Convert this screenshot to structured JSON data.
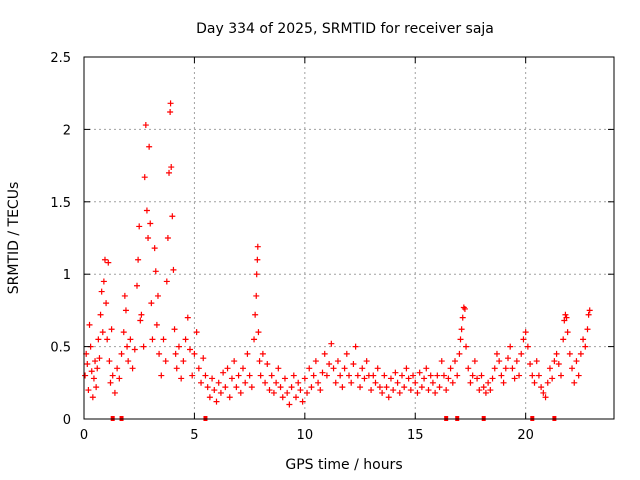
{
  "chart_data": {
    "type": "scatter",
    "title": "Day 334 of 2025, SRMTID for receiver saja",
    "xlabel": "GPS time / hours",
    "ylabel": "SRMTID / TECUs",
    "xlim": [
      0,
      24
    ],
    "ylim": [
      0,
      2.5
    ],
    "x_ticks": [
      0,
      5,
      10,
      15,
      20
    ],
    "x_tick_labels": [
      "0",
      "5",
      "10",
      "15",
      "20"
    ],
    "y_ticks": [
      0,
      0.5,
      1,
      1.5,
      2,
      2.5
    ],
    "y_tick_labels": [
      "0",
      "0.5",
      "1",
      "1.5",
      "2",
      "2.5"
    ],
    "grid": true,
    "marker": "+",
    "series": [
      {
        "name": "SRMTID",
        "color": "#ff0000",
        "points": [
          [
            0.05,
            0.3
          ],
          [
            0.1,
            0.45
          ],
          [
            0.15,
            0.38
          ],
          [
            0.2,
            0.2
          ],
          [
            0.25,
            0.65
          ],
          [
            0.3,
            0.5
          ],
          [
            0.35,
            0.33
          ],
          [
            0.4,
            0.15
          ],
          [
            0.45,
            0.28
          ],
          [
            0.5,
            0.4
          ],
          [
            0.55,
            0.22
          ],
          [
            0.6,
            0.35
          ],
          [
            0.65,
            0.55
          ],
          [
            0.7,
            0.42
          ],
          [
            0.75,
            0.72
          ],
          [
            0.8,
            0.88
          ],
          [
            0.85,
            0.6
          ],
          [
            0.9,
            0.95
          ],
          [
            0.95,
            1.1
          ],
          [
            1.0,
            0.8
          ],
          [
            1.05,
            0.55
          ],
          [
            1.1,
            1.08
          ],
          [
            1.15,
            0.4
          ],
          [
            1.2,
            0.25
          ],
          [
            1.25,
            0.62
          ],
          [
            1.3,
            0.3
          ],
          [
            1.4,
            0.18
          ],
          [
            1.5,
            0.35
          ],
          [
            1.6,
            0.28
          ],
          [
            1.7,
            0.45
          ],
          [
            1.8,
            0.6
          ],
          [
            1.85,
            0.85
          ],
          [
            1.9,
            0.75
          ],
          [
            1.95,
            0.5
          ],
          [
            2.0,
            0.4
          ],
          [
            2.1,
            0.55
          ],
          [
            2.2,
            0.35
          ],
          [
            2.3,
            0.48
          ],
          [
            2.4,
            0.92
          ],
          [
            2.45,
            1.1
          ],
          [
            2.5,
            1.33
          ],
          [
            2.55,
            0.68
          ],
          [
            2.6,
            0.72
          ],
          [
            2.7,
            0.5
          ],
          [
            2.75,
            1.67
          ],
          [
            2.8,
            2.03
          ],
          [
            2.85,
            1.44
          ],
          [
            2.9,
            1.25
          ],
          [
            2.95,
            1.88
          ],
          [
            3.0,
            1.35
          ],
          [
            3.05,
            0.8
          ],
          [
            3.1,
            0.55
          ],
          [
            3.2,
            1.18
          ],
          [
            3.25,
            1.02
          ],
          [
            3.3,
            0.65
          ],
          [
            3.35,
            0.85
          ],
          [
            3.4,
            0.45
          ],
          [
            3.5,
            0.3
          ],
          [
            3.6,
            0.55
          ],
          [
            3.7,
            0.4
          ],
          [
            3.75,
            0.95
          ],
          [
            3.8,
            1.25
          ],
          [
            3.85,
            1.7
          ],
          [
            3.9,
            2.12
          ],
          [
            3.92,
            2.18
          ],
          [
            3.95,
            1.74
          ],
          [
            4.0,
            1.4
          ],
          [
            4.05,
            1.03
          ],
          [
            4.1,
            0.62
          ],
          [
            4.15,
            0.45
          ],
          [
            4.2,
            0.35
          ],
          [
            4.3,
            0.5
          ],
          [
            4.4,
            0.28
          ],
          [
            4.5,
            0.4
          ],
          [
            4.6,
            0.55
          ],
          [
            4.7,
            0.7
          ],
          [
            4.8,
            0.48
          ],
          [
            4.9,
            0.3
          ],
          [
            5.0,
            0.45
          ],
          [
            5.1,
            0.6
          ],
          [
            5.2,
            0.35
          ],
          [
            5.3,
            0.25
          ],
          [
            5.4,
            0.42
          ],
          [
            5.5,
            0.3
          ],
          [
            5.6,
            0.22
          ],
          [
            5.7,
            0.15
          ],
          [
            5.8,
            0.28
          ],
          [
            5.9,
            0.2
          ],
          [
            6.0,
            0.12
          ],
          [
            6.1,
            0.25
          ],
          [
            6.2,
            0.18
          ],
          [
            6.3,
            0.32
          ],
          [
            6.4,
            0.22
          ],
          [
            6.5,
            0.35
          ],
          [
            6.6,
            0.15
          ],
          [
            6.7,
            0.28
          ],
          [
            6.8,
            0.4
          ],
          [
            6.9,
            0.22
          ],
          [
            7.0,
            0.3
          ],
          [
            7.1,
            0.18
          ],
          [
            7.2,
            0.35
          ],
          [
            7.3,
            0.25
          ],
          [
            7.4,
            0.45
          ],
          [
            7.5,
            0.3
          ],
          [
            7.6,
            0.22
          ],
          [
            7.7,
            0.55
          ],
          [
            7.75,
            0.72
          ],
          [
            7.8,
            0.85
          ],
          [
            7.82,
            1.0
          ],
          [
            7.85,
            1.1
          ],
          [
            7.87,
            1.19
          ],
          [
            7.9,
            0.6
          ],
          [
            7.95,
            0.4
          ],
          [
            8.0,
            0.3
          ],
          [
            8.1,
            0.45
          ],
          [
            8.2,
            0.25
          ],
          [
            8.3,
            0.38
          ],
          [
            8.4,
            0.2
          ],
          [
            8.5,
            0.3
          ],
          [
            8.6,
            0.18
          ],
          [
            8.7,
            0.25
          ],
          [
            8.8,
            0.35
          ],
          [
            8.9,
            0.22
          ],
          [
            9.0,
            0.15
          ],
          [
            9.1,
            0.28
          ],
          [
            9.2,
            0.18
          ],
          [
            9.3,
            0.1
          ],
          [
            9.4,
            0.22
          ],
          [
            9.5,
            0.3
          ],
          [
            9.6,
            0.15
          ],
          [
            9.7,
            0.25
          ],
          [
            9.8,
            0.2
          ],
          [
            9.9,
            0.12
          ],
          [
            10.0,
            0.28
          ],
          [
            10.1,
            0.18
          ],
          [
            10.2,
            0.35
          ],
          [
            10.3,
            0.22
          ],
          [
            10.4,
            0.3
          ],
          [
            10.5,
            0.4
          ],
          [
            10.6,
            0.25
          ],
          [
            10.7,
            0.2
          ],
          [
            10.8,
            0.32
          ],
          [
            10.9,
            0.45
          ],
          [
            11.0,
            0.3
          ],
          [
            11.1,
            0.38
          ],
          [
            11.2,
            0.52
          ],
          [
            11.3,
            0.35
          ],
          [
            11.4,
            0.25
          ],
          [
            11.5,
            0.4
          ],
          [
            11.6,
            0.3
          ],
          [
            11.7,
            0.22
          ],
          [
            11.8,
            0.35
          ],
          [
            11.9,
            0.45
          ],
          [
            12.0,
            0.3
          ],
          [
            12.1,
            0.25
          ],
          [
            12.2,
            0.38
          ],
          [
            12.3,
            0.5
          ],
          [
            12.4,
            0.3
          ],
          [
            12.5,
            0.22
          ],
          [
            12.6,
            0.35
          ],
          [
            12.7,
            0.28
          ],
          [
            12.8,
            0.4
          ],
          [
            12.9,
            0.3
          ],
          [
            13.0,
            0.2
          ],
          [
            13.1,
            0.3
          ],
          [
            13.2,
            0.25
          ],
          [
            13.3,
            0.35
          ],
          [
            13.4,
            0.22
          ],
          [
            13.5,
            0.18
          ],
          [
            13.6,
            0.3
          ],
          [
            13.7,
            0.22
          ],
          [
            13.8,
            0.15
          ],
          [
            13.9,
            0.28
          ],
          [
            14.0,
            0.2
          ],
          [
            14.1,
            0.32
          ],
          [
            14.2,
            0.25
          ],
          [
            14.3,
            0.18
          ],
          [
            14.4,
            0.3
          ],
          [
            14.5,
            0.22
          ],
          [
            14.6,
            0.35
          ],
          [
            14.7,
            0.28
          ],
          [
            14.8,
            0.2
          ],
          [
            14.9,
            0.3
          ],
          [
            15.0,
            0.25
          ],
          [
            15.1,
            0.18
          ],
          [
            15.2,
            0.32
          ],
          [
            15.3,
            0.22
          ],
          [
            15.4,
            0.28
          ],
          [
            15.5,
            0.35
          ],
          [
            15.6,
            0.2
          ],
          [
            15.7,
            0.3
          ],
          [
            15.8,
            0.25
          ],
          [
            15.9,
            0.18
          ],
          [
            16.0,
            0.3
          ],
          [
            16.1,
            0.22
          ],
          [
            16.2,
            0.4
          ],
          [
            16.3,
            0.3
          ],
          [
            16.4,
            0.2
          ],
          [
            16.5,
            0.28
          ],
          [
            16.6,
            0.35
          ],
          [
            16.7,
            0.25
          ],
          [
            16.8,
            0.4
          ],
          [
            16.9,
            0.3
          ],
          [
            17.0,
            0.45
          ],
          [
            17.05,
            0.55
          ],
          [
            17.1,
            0.62
          ],
          [
            17.15,
            0.7
          ],
          [
            17.2,
            0.77
          ],
          [
            17.25,
            0.76
          ],
          [
            17.3,
            0.5
          ],
          [
            17.4,
            0.35
          ],
          [
            17.5,
            0.25
          ],
          [
            17.6,
            0.3
          ],
          [
            17.7,
            0.4
          ],
          [
            17.8,
            0.28
          ],
          [
            17.9,
            0.2
          ],
          [
            18.0,
            0.3
          ],
          [
            18.1,
            0.22
          ],
          [
            18.2,
            0.18
          ],
          [
            18.3,
            0.25
          ],
          [
            18.4,
            0.2
          ],
          [
            18.5,
            0.28
          ],
          [
            18.6,
            0.35
          ],
          [
            18.7,
            0.45
          ],
          [
            18.8,
            0.4
          ],
          [
            18.9,
            0.3
          ],
          [
            19.0,
            0.25
          ],
          [
            19.1,
            0.35
          ],
          [
            19.2,
            0.42
          ],
          [
            19.3,
            0.5
          ],
          [
            19.4,
            0.35
          ],
          [
            19.5,
            0.28
          ],
          [
            19.6,
            0.4
          ],
          [
            19.7,
            0.3
          ],
          [
            19.8,
            0.45
          ],
          [
            19.9,
            0.55
          ],
          [
            20.0,
            0.6
          ],
          [
            20.1,
            0.5
          ],
          [
            20.2,
            0.38
          ],
          [
            20.3,
            0.3
          ],
          [
            20.4,
            0.25
          ],
          [
            20.5,
            0.4
          ],
          [
            20.6,
            0.3
          ],
          [
            20.7,
            0.22
          ],
          [
            20.8,
            0.18
          ],
          [
            20.9,
            0.15
          ],
          [
            21.0,
            0.25
          ],
          [
            21.1,
            0.35
          ],
          [
            21.2,
            0.28
          ],
          [
            21.3,
            0.4
          ],
          [
            21.4,
            0.45
          ],
          [
            21.5,
            0.38
          ],
          [
            21.6,
            0.3
          ],
          [
            21.7,
            0.55
          ],
          [
            21.75,
            0.68
          ],
          [
            21.8,
            0.72
          ],
          [
            21.85,
            0.7
          ],
          [
            21.9,
            0.6
          ],
          [
            22.0,
            0.45
          ],
          [
            22.1,
            0.35
          ],
          [
            22.2,
            0.25
          ],
          [
            22.3,
            0.4
          ],
          [
            22.4,
            0.3
          ],
          [
            22.5,
            0.45
          ],
          [
            22.6,
            0.55
          ],
          [
            22.7,
            0.5
          ],
          [
            22.8,
            0.62
          ],
          [
            22.85,
            0.72
          ],
          [
            22.9,
            0.75
          ]
        ]
      }
    ],
    "missing_data_markers_x": [
      1.3,
      1.7,
      5.5,
      16.4,
      16.9,
      18.1,
      20.3,
      21.3
    ]
  }
}
